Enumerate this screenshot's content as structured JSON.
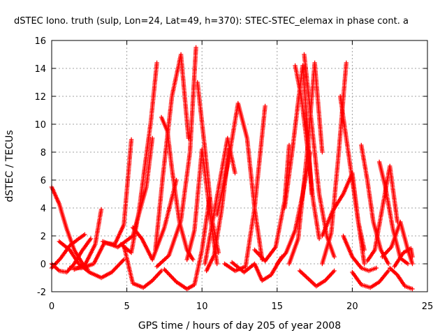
{
  "chart_data": {
    "type": "scatter",
    "title": "dSTEC Iono. truth (sulp, Lon=24, Lat=49, h=370): STEC-STEC_elemax in phase cont. a",
    "xlabel": "GPS time / hours of day 205 of year 2008",
    "ylabel": "dSTEC  / TECUs",
    "xlim": [
      0,
      25
    ],
    "ylim": [
      -2,
      16
    ],
    "xticks": [
      0,
      5,
      10,
      15,
      20,
      25
    ],
    "yticks": [
      -2,
      0,
      2,
      4,
      6,
      8,
      10,
      12,
      14,
      16
    ],
    "grid": true,
    "marker": "plus",
    "marker_color": "#ff0000",
    "series": [
      {
        "x": [
          0.0,
          0.5,
          1.0,
          1.5,
          2.0,
          2.4
        ],
        "y": [
          5.5,
          4.3,
          2.5,
          1.0,
          0.1,
          -0.4
        ]
      },
      {
        "x": [
          0.0,
          0.6,
          1.2,
          1.8,
          2.2
        ],
        "y": [
          -0.3,
          0.4,
          1.3,
          1.8,
          2.1
        ]
      },
      {
        "x": [
          0.0,
          0.5,
          1.0,
          1.5,
          2.0,
          2.6
        ],
        "y": [
          0.0,
          -0.5,
          -0.6,
          0.0,
          0.9,
          1.8
        ]
      },
      {
        "x": [
          1.5,
          2.2,
          2.9,
          3.3
        ],
        "y": [
          -0.4,
          -0.1,
          1.4,
          3.9
        ]
      },
      {
        "x": [
          0.5,
          1.2,
          1.8,
          2.5,
          3.3,
          4.0,
          4.8
        ],
        "y": [
          1.6,
          1.0,
          0.0,
          -0.6,
          -1.0,
          -0.6,
          0.3
        ]
      },
      {
        "x": [
          1.2,
          2.0,
          2.8,
          3.5,
          4.2,
          4.8,
          5.3
        ],
        "y": [
          -0.3,
          -0.3,
          0.0,
          1.5,
          1.4,
          2.8,
          8.9
        ]
      },
      {
        "x": [
          3.4,
          4.4,
          5.4,
          6.3,
          6.7
        ],
        "y": [
          1.6,
          1.2,
          2.0,
          5.5,
          9.0
        ]
      },
      {
        "x": [
          4.6,
          5.3,
          5.8,
          6.2,
          6.6,
          7.0
        ],
        "y": [
          1.4,
          0.8,
          3.7,
          7.0,
          10.2,
          14.4
        ]
      },
      {
        "x": [
          4.8,
          5.4,
          6.1,
          6.7,
          7.3
        ],
        "y": [
          1.3,
          -1.4,
          -1.7,
          -1.2,
          -0.5
        ]
      },
      {
        "x": [
          5.4,
          6.0,
          6.7,
          7.5,
          8.3
        ],
        "y": [
          2.6,
          1.8,
          0.3,
          2.6,
          6.0
        ]
      },
      {
        "x": [
          7.3,
          7.7,
          8.0,
          8.5,
          9.0,
          9.4
        ],
        "y": [
          10.5,
          9.5,
          6.8,
          3.0,
          1.0,
          0.3
        ]
      },
      {
        "x": [
          6.9,
          7.4,
          8.0,
          8.6,
          9.1
        ],
        "y": [
          1.0,
          6.3,
          12.0,
          15.0,
          9.0
        ]
      },
      {
        "x": [
          7.0,
          7.8,
          8.6,
          9.2,
          9.6
        ],
        "y": [
          -0.2,
          0.6,
          3.1,
          8.0,
          15.5
        ]
      },
      {
        "x": [
          7.5,
          8.3,
          9.0,
          9.5,
          10.0,
          10.5
        ],
        "y": [
          -0.4,
          -1.3,
          -1.8,
          -1.5,
          1.0,
          4.7
        ]
      },
      {
        "x": [
          9.7,
          10.2,
          10.7,
          11.1
        ],
        "y": [
          13.0,
          8.2,
          3.0,
          0.8
        ]
      },
      {
        "x": [
          9.0,
          9.5,
          10.0,
          10.6,
          11.0
        ],
        "y": [
          0.3,
          2.4,
          8.2,
          3.0,
          0.0
        ]
      },
      {
        "x": [
          10.2,
          10.7,
          11.2,
          11.7,
          12.2
        ],
        "y": [
          0.0,
          3.0,
          6.0,
          9.0,
          6.5
        ]
      },
      {
        "x": [
          10.3,
          10.8,
          11.3,
          11.8
        ],
        "y": [
          -0.5,
          0.6,
          3.8,
          8.2
        ]
      },
      {
        "x": [
          11.0,
          11.7,
          12.4,
          13.0,
          13.5,
          14.0
        ],
        "y": [
          3.5,
          7.0,
          11.5,
          9.0,
          4.0,
          0.3
        ]
      },
      {
        "x": [
          11.5,
          12.2,
          12.9,
          13.5,
          14.2
        ],
        "y": [
          0.0,
          -0.5,
          -0.2,
          4.0,
          11.3
        ]
      },
      {
        "x": [
          12.0,
          12.8,
          13.5,
          14.0,
          14.6,
          15.3
        ],
        "y": [
          0.1,
          -0.6,
          0.0,
          -1.2,
          -0.8,
          0.5
        ]
      },
      {
        "x": [
          13.5,
          14.2,
          14.9,
          15.5,
          15.8
        ],
        "y": [
          1.0,
          0.2,
          1.2,
          4.5,
          8.5
        ]
      },
      {
        "x": [
          15.0,
          15.6,
          16.2,
          16.7,
          17.2
        ],
        "y": [
          0.0,
          0.8,
          2.4,
          5.0,
          8.0
        ]
      },
      {
        "x": [
          15.5,
          16.0,
          16.4,
          16.7,
          17.0,
          17.3
        ],
        "y": [
          4.0,
          8.0,
          11.6,
          14.2,
          10.0,
          5.0
        ]
      },
      {
        "x": [
          16.2,
          16.6,
          17.0,
          17.4,
          17.8
        ],
        "y": [
          14.2,
          12.0,
          8.5,
          4.5,
          1.8
        ]
      },
      {
        "x": [
          15.8,
          16.4,
          17.0,
          17.5,
          18.0
        ],
        "y": [
          0.0,
          1.8,
          8.0,
          14.4,
          8.0
        ]
      },
      {
        "x": [
          16.8,
          17.3,
          17.8,
          18.3,
          18.8
        ],
        "y": [
          15.0,
          10.0,
          5.0,
          2.0,
          0.5
        ]
      },
      {
        "x": [
          16.5,
          17.0,
          17.6,
          18.2,
          18.8
        ],
        "y": [
          -0.5,
          -1.0,
          -1.6,
          -1.2,
          -0.5
        ]
      },
      {
        "x": [
          18.0,
          18.6,
          19.1,
          19.6
        ],
        "y": [
          0.0,
          2.2,
          8.0,
          14.4
        ]
      },
      {
        "x": [
          19.2,
          19.6,
          20.0,
          20.4,
          20.8
        ],
        "y": [
          12.0,
          9.0,
          6.0,
          3.0,
          1.0
        ]
      },
      {
        "x": [
          18.0,
          18.7,
          19.4,
          20.0,
          20.4,
          20.8
        ],
        "y": [
          2.0,
          3.8,
          5.0,
          6.5,
          3.0,
          0.0
        ]
      },
      {
        "x": [
          19.4,
          20.0,
          20.6,
          21.1,
          21.6
        ],
        "y": [
          2.0,
          0.5,
          -0.3,
          -0.5,
          -0.3
        ]
      },
      {
        "x": [
          20.0,
          20.6,
          21.2,
          21.8,
          22.4
        ],
        "y": [
          -0.6,
          -1.5,
          -1.7,
          -1.3,
          -0.5
        ]
      },
      {
        "x": [
          20.6,
          21.0,
          21.4,
          21.9,
          22.4
        ],
        "y": [
          8.5,
          6.0,
          3.0,
          1.0,
          0.0
        ]
      },
      {
        "x": [
          21.0,
          21.5,
          22.0,
          22.5,
          23.0
        ],
        "y": [
          0.2,
          1.0,
          4.0,
          7.0,
          3.0
        ]
      },
      {
        "x": [
          21.8,
          22.2,
          22.7,
          23.2,
          23.7
        ],
        "y": [
          7.3,
          5.5,
          2.5,
          0.4,
          0.0
        ]
      },
      {
        "x": [
          22.0,
          22.6,
          23.2,
          23.7,
          24.0
        ],
        "y": [
          0.5,
          1.2,
          3.0,
          1.0,
          0.0
        ]
      },
      {
        "x": [
          22.5,
          23.0,
          23.5,
          24.0
        ],
        "y": [
          -0.3,
          -0.8,
          -1.6,
          -1.8
        ]
      },
      {
        "x": [
          22.8,
          23.4,
          23.9,
          24.0
        ],
        "y": [
          -0.2,
          0.8,
          1.1,
          0.5
        ]
      }
    ]
  }
}
